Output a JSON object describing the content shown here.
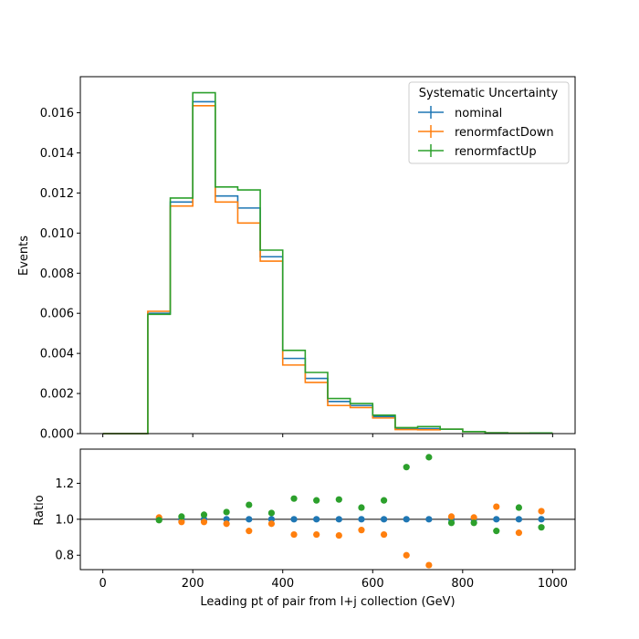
{
  "chart_data": {
    "type": "step",
    "xlabel": "Leading pt of pair from l+j collection (GeV)",
    "ylabel_top": "Events",
    "ylabel_bottom": "Ratio",
    "legend_title": "Systematic Uncertainty",
    "legend_placement": "top-right",
    "grid": false,
    "x_ticks": [
      "0",
      "200",
      "400",
      "600",
      "800",
      "1000"
    ],
    "x_tick_values": [
      0,
      200,
      400,
      600,
      800,
      1000
    ],
    "xlim": [
      -50,
      1050
    ],
    "top_ylim": [
      0,
      0.0178
    ],
    "top_y_ticks": [
      "0.000",
      "0.002",
      "0.004",
      "0.006",
      "0.008",
      "0.010",
      "0.012",
      "0.014",
      "0.016"
    ],
    "top_y_tick_values": [
      0,
      0.002,
      0.004,
      0.006,
      0.008,
      0.01,
      0.012,
      0.014,
      0.016
    ],
    "bottom_ylim": [
      0.72,
      1.39
    ],
    "bottom_y_ticks": [
      "0.8",
      "1.0",
      "1.2"
    ],
    "bottom_y_tick_values": [
      0.8,
      1.0,
      1.2
    ],
    "bin_edges": [
      0,
      50,
      100,
      150,
      200,
      250,
      300,
      350,
      400,
      450,
      500,
      550,
      600,
      650,
      700,
      750,
      800,
      850,
      900,
      950,
      1000
    ],
    "series": [
      {
        "name": "nominal",
        "color": "#1f77b4",
        "values": [
          0,
          0,
          0.006,
          0.01155,
          0.01655,
          0.01185,
          0.01125,
          0.00882,
          0.00375,
          0.00275,
          0.0016,
          0.0014,
          0.00085,
          0.00025,
          0.00025,
          0.00022,
          0.0001,
          4e-05,
          2e-05,
          3e-05
        ],
        "ratio": [
          null,
          null,
          1.0,
          1.0,
          1.0,
          1.0,
          1.0,
          1.0,
          1.0,
          1.0,
          1.0,
          1.0,
          1.0,
          1.0,
          1.0,
          1.0,
          1.0,
          1.0,
          1.0,
          1.0
        ]
      },
      {
        "name": "renormfactDown",
        "color": "#ff7f0e",
        "values": [
          0,
          0,
          0.0061,
          0.01135,
          0.01635,
          0.01155,
          0.0105,
          0.0086,
          0.00342,
          0.00255,
          0.0014,
          0.0013,
          0.00078,
          0.0002,
          0.00019,
          0.00022,
          0.0001,
          4e-05,
          2e-05,
          3e-05
        ],
        "ratio": [
          null,
          null,
          1.01,
          0.985,
          0.985,
          0.975,
          0.935,
          0.975,
          0.915,
          0.915,
          0.91,
          0.94,
          0.915,
          0.8,
          0.745,
          1.015,
          1.01,
          1.07,
          0.925,
          1.045
        ]
      },
      {
        "name": "renormfactUp",
        "color": "#2ca02c",
        "values": [
          0,
          0,
          0.00595,
          0.01175,
          0.017,
          0.0123,
          0.01215,
          0.00915,
          0.00415,
          0.00305,
          0.00175,
          0.0015,
          0.00092,
          0.0003,
          0.00035,
          0.00022,
          0.0001,
          4e-05,
          2e-05,
          3e-05
        ],
        "ratio": [
          null,
          null,
          0.995,
          1.015,
          1.025,
          1.04,
          1.08,
          1.035,
          1.115,
          1.105,
          1.11,
          1.065,
          1.105,
          1.29,
          1.345,
          0.98,
          0.98,
          0.935,
          1.065,
          0.955
        ]
      }
    ]
  }
}
